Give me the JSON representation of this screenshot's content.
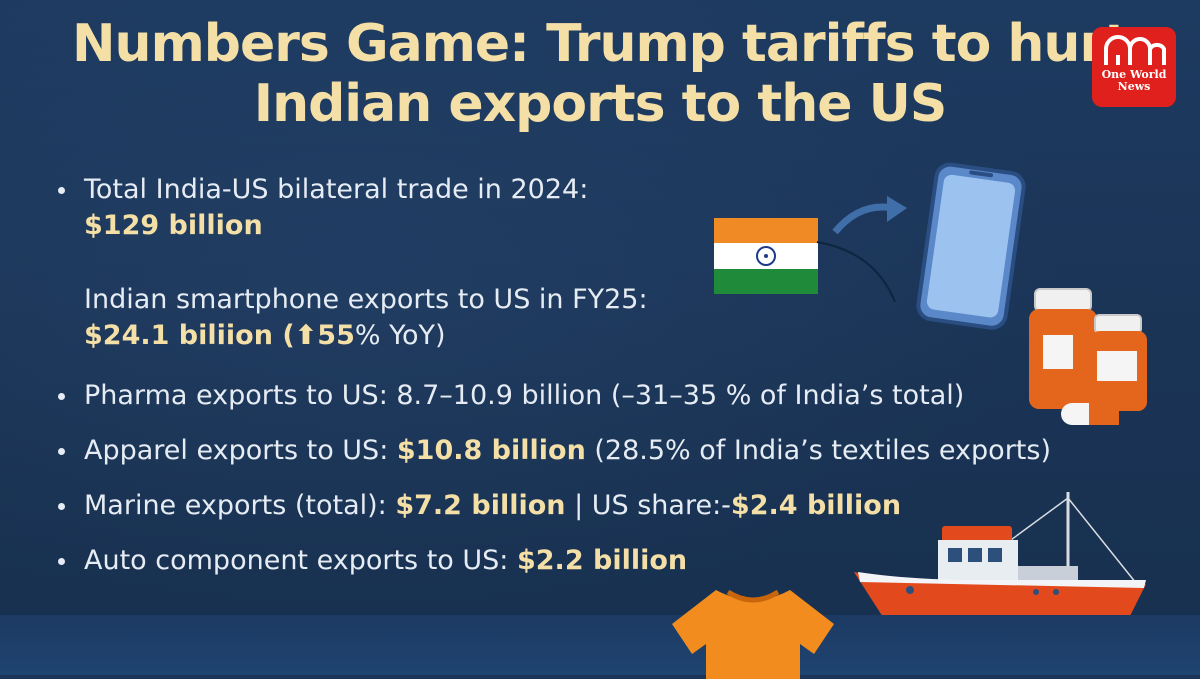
{
  "title": {
    "line1": "Numbers Game: Trump tariffs to hurt",
    "line2": "Indian exports to the US"
  },
  "logo": {
    "line1": "One World",
    "line2": "News"
  },
  "items": [
    {
      "label": "Total India-US bilateral trade in 2024:",
      "value": "$129 billion"
    },
    {
      "label": "Indian smartphone exports to US in FY25:",
      "value": "$24.1 biliion",
      "extra_open": " (",
      "arrow": "⬆",
      "pct": "55",
      "extra_rest": "% YoY)"
    },
    {
      "label": "Pharma exports to US: 8.7–10.9 billion (–31–35 % of India’s total)"
    },
    {
      "label": "Apparel exports to US: ",
      "value": "$10.8 billion",
      "suffix": " (28.5% of India’s textiles exports)"
    },
    {
      "label": "Marine exports (total): ",
      "value": "$7.2 billion",
      "mid": " | US share:-",
      "value2": "$2.4 billion"
    },
    {
      "label": "Auto component exports to US: ",
      "value": "$2.2 billion"
    }
  ],
  "colors": {
    "background": "#1b3457",
    "title": "#f4dfa6",
    "highlight": "#f4dfa6",
    "text": "#e6ecf3",
    "logo": "#e0201c"
  },
  "illustrations": [
    "india-flag-icon",
    "arrow-icon",
    "smartphone-icon",
    "pill-bottle-icon",
    "ship-icon",
    "tshirt-icon"
  ]
}
